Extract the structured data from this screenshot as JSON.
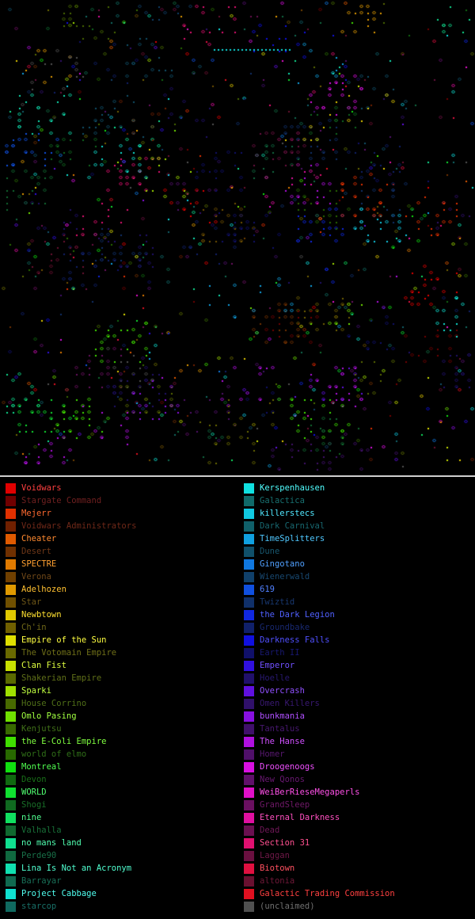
{
  "map": {
    "background": "#000000",
    "description_icon": "star-diamond-icon"
  },
  "legend": {
    "left_column": [
      {
        "name": "Voidwars",
        "color": "#e00000",
        "text": "#ff4040"
      },
      {
        "name": "Stargate Command",
        "color": "#700000",
        "text": "#702020"
      },
      {
        "name": "Mejerr",
        "color": "#e03000",
        "text": "#ff6a30"
      },
      {
        "name": "Voidwars Administrators",
        "color": "#702000",
        "text": "#702818"
      },
      {
        "name": "Cheater",
        "color": "#e05a00",
        "text": "#ff8a30"
      },
      {
        "name": "Desert",
        "color": "#703000",
        "text": "#703818"
      },
      {
        "name": "SPECTRE",
        "color": "#e07a00",
        "text": "#ffa030"
      },
      {
        "name": "Verona",
        "color": "#704000",
        "text": "#704818"
      },
      {
        "name": "Adelhozen",
        "color": "#e09a00",
        "text": "#ffc030"
      },
      {
        "name": "Star",
        "color": "#705000",
        "text": "#705818"
      },
      {
        "name": "Newbtown",
        "color": "#e0c800",
        "text": "#ffe030"
      },
      {
        "name": "Ch'in",
        "color": "#706000",
        "text": "#706818"
      },
      {
        "name": "Empire of the Sun",
        "color": "#e0e000",
        "text": "#ffff40"
      },
      {
        "name": "The Votomain Empire",
        "color": "#6a6a00",
        "text": "#707018"
      },
      {
        "name": "Clan Fist",
        "color": "#c8e000",
        "text": "#e0ff40"
      },
      {
        "name": "Shakerian Empire",
        "color": "#5a6a00",
        "text": "#607018"
      },
      {
        "name": "Sparki",
        "color": "#a0e000",
        "text": "#c0ff40"
      },
      {
        "name": "House Corrino",
        "color": "#486a00",
        "text": "#507018"
      },
      {
        "name": "Omlo Pasing",
        "color": "#70e000",
        "text": "#a0ff40"
      },
      {
        "name": "Kenjutsu",
        "color": "#386a00",
        "text": "#407018"
      },
      {
        "name": "the E-Coli Empire",
        "color": "#40e000",
        "text": "#80ff40"
      },
      {
        "name": "world of elmo",
        "color": "#286a00",
        "text": "#307018"
      },
      {
        "name": "Montreal",
        "color": "#10e010",
        "text": "#50ff50"
      },
      {
        "name": "Devon",
        "color": "#106a10",
        "text": "#187018"
      },
      {
        "name": "WORLD",
        "color": "#10e030",
        "text": "#50ff70"
      },
      {
        "name": "Shogi",
        "color": "#106a20",
        "text": "#187028"
      },
      {
        "name": "nine",
        "color": "#10e060",
        "text": "#50ff90"
      },
      {
        "name": "Valhalla",
        "color": "#106a30",
        "text": "#187038"
      },
      {
        "name": "no mans land",
        "color": "#10e090",
        "text": "#50ffb0"
      },
      {
        "name": "Perde90",
        "color": "#106a40",
        "text": "#187048"
      },
      {
        "name": "Lina Is Not an Acronym",
        "color": "#10e0b0",
        "text": "#50ffd0"
      },
      {
        "name": "Barrayar",
        "color": "#106a50",
        "text": "#187058"
      },
      {
        "name": "Project Cabbage",
        "color": "#10e0d0",
        "text": "#50fff0"
      },
      {
        "name": "starcop",
        "color": "#106a60",
        "text": "#187068"
      }
    ],
    "right_column": [
      {
        "name": "Kerspenhausen",
        "color": "#10e0e0",
        "text": "#50ffff"
      },
      {
        "name": "Galactica",
        "color": "#106a6a",
        "text": "#187070"
      },
      {
        "name": "killerstecs",
        "color": "#10c8e0",
        "text": "#50e8ff"
      },
      {
        "name": "Dark Carnival",
        "color": "#10606a",
        "text": "#186870"
      },
      {
        "name": "TimeSplitters",
        "color": "#10a0e0",
        "text": "#50c8ff"
      },
      {
        "name": "Dune",
        "color": "#10506a",
        "text": "#185870"
      },
      {
        "name": "Gingotano",
        "color": "#1078e0",
        "text": "#50a0ff"
      },
      {
        "name": "Wienerwald",
        "color": "#10406a",
        "text": "#184870"
      },
      {
        "name": "619",
        "color": "#1050e0",
        "text": "#5080ff"
      },
      {
        "name": "Twiztid",
        "color": "#10306a",
        "text": "#183870"
      },
      {
        "name": "the Dark Legion",
        "color": "#1028e0",
        "text": "#5060ff"
      },
      {
        "name": "Groundbake",
        "color": "#10206a",
        "text": "#182870"
      },
      {
        "name": "Darkness Falls",
        "color": "#1010e0",
        "text": "#5050ff"
      },
      {
        "name": "Earth II",
        "color": "#10106a",
        "text": "#181870"
      },
      {
        "name": "Emperor",
        "color": "#3010e0",
        "text": "#7050ff"
      },
      {
        "name": "Hoelle",
        "color": "#20106a",
        "text": "#281870"
      },
      {
        "name": "Overcrash",
        "color": "#6010e0",
        "text": "#9050ff"
      },
      {
        "name": "Omen Killers",
        "color": "#30106a",
        "text": "#381870"
      },
      {
        "name": "bunkmania",
        "color": "#8810e0",
        "text": "#b050ff"
      },
      {
        "name": "Tantalus",
        "color": "#40106a",
        "text": "#481870"
      },
      {
        "name": "The Hanse",
        "color": "#b010e0",
        "text": "#d050ff"
      },
      {
        "name": "Homer",
        "color": "#50106a",
        "text": "#581870"
      },
      {
        "name": "Droogenoogs",
        "color": "#d810e0",
        "text": "#f050ff"
      },
      {
        "name": "New Qonos",
        "color": "#60106a",
        "text": "#681870"
      },
      {
        "name": "WeiBerRieseMegaperls",
        "color": "#e010c8",
        "text": "#ff50e8"
      },
      {
        "name": "GrandSleep",
        "color": "#6a1060",
        "text": "#701868"
      },
      {
        "name": "Eternal Darkness",
        "color": "#e010a0",
        "text": "#ff50c0"
      },
      {
        "name": "Dead",
        "color": "#6a1050",
        "text": "#701858"
      },
      {
        "name": "Section 31",
        "color": "#e01070",
        "text": "#ff5090"
      },
      {
        "name": "Laggan",
        "color": "#6a1040",
        "text": "#701848"
      },
      {
        "name": "Biotown",
        "color": "#e01040",
        "text": "#ff5060"
      },
      {
        "name": "altonia",
        "color": "#6a1030",
        "text": "#701838"
      },
      {
        "name": "Galactic Trading Commission",
        "color": "#e01020",
        "text": "#ff4040"
      },
      {
        "name": "(unclaimed)",
        "color": "#505050",
        "text": "#707070"
      }
    ]
  }
}
